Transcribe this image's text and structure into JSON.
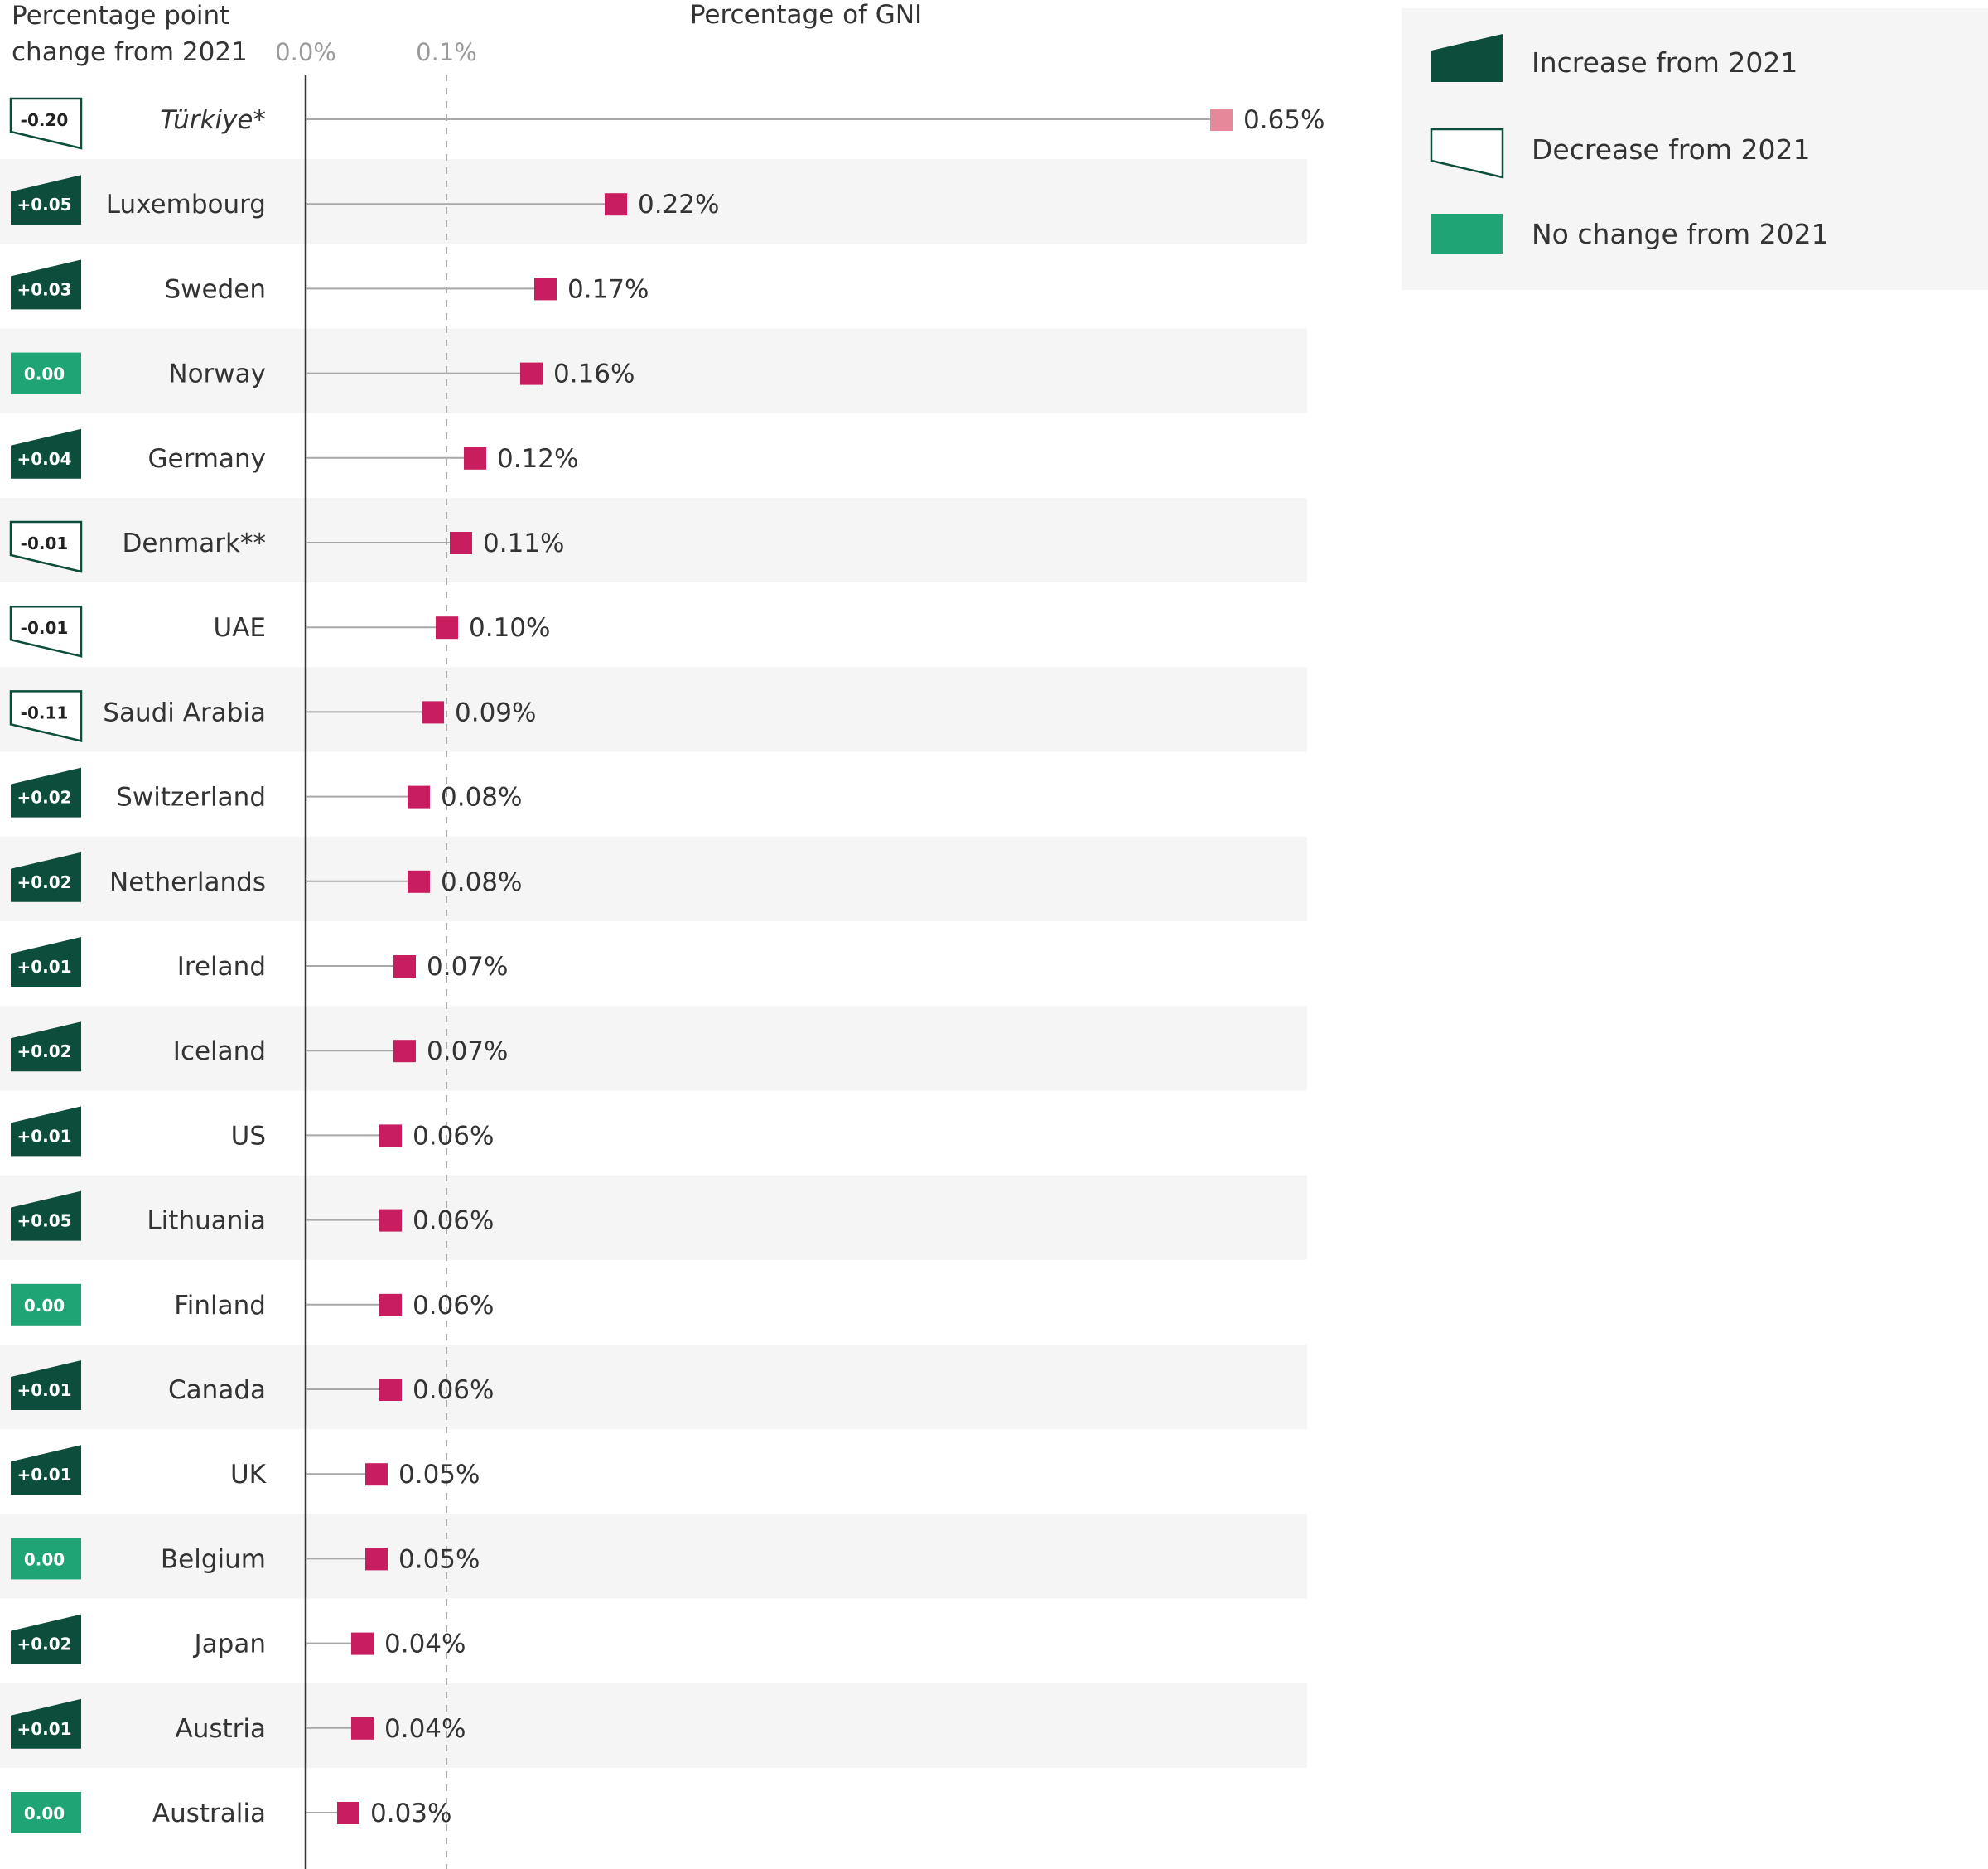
{
  "chart_data": {
    "type": "dot",
    "header_left": [
      "Percentage point",
      "change from 2021"
    ],
    "title": "Percentage of GNI",
    "x_ticks": [
      "0.0%",
      "0.1%"
    ],
    "xlim": [
      0,
      0.65
    ],
    "countries": [
      "Türkiye*",
      "Luxembourg",
      "Sweden",
      "Norway",
      "Germany",
      "Denmark**",
      "UAE",
      "Saudi Arabia",
      "Switzerland",
      "Netherlands",
      "Ireland",
      "Iceland",
      "US",
      "Lithuania",
      "Finland",
      "Canada",
      "UK",
      "Belgium",
      "Japan",
      "Austria",
      "Australia"
    ],
    "values": [
      0.65,
      0.22,
      0.17,
      0.16,
      0.12,
      0.11,
      0.1,
      0.09,
      0.08,
      0.08,
      0.07,
      0.07,
      0.06,
      0.06,
      0.06,
      0.06,
      0.05,
      0.05,
      0.04,
      0.04,
      0.03
    ],
    "value_labels": [
      "0.65%",
      "0.22%",
      "0.17%",
      "0.16%",
      "0.12%",
      "0.11%",
      "0.10%",
      "0.09%",
      "0.08%",
      "0.08%",
      "0.07%",
      "0.07%",
      "0.06%",
      "0.06%",
      "0.06%",
      "0.06%",
      "0.05%",
      "0.05%",
      "0.04%",
      "0.04%",
      "0.03%"
    ],
    "changes": [
      "-0.20",
      "+0.05",
      "+0.03",
      "0.00",
      "+0.04",
      "-0.01",
      "-0.01",
      "-0.11",
      "+0.02",
      "+0.02",
      "+0.01",
      "+0.02",
      "+0.01",
      "+0.05",
      "0.00",
      "+0.01",
      "+0.01",
      "0.00",
      "+0.02",
      "+0.01",
      "0.00"
    ],
    "change_types": [
      "decrease",
      "increase",
      "increase",
      "none",
      "increase",
      "decrease",
      "decrease",
      "decrease",
      "increase",
      "increase",
      "increase",
      "increase",
      "increase",
      "increase",
      "none",
      "increase",
      "increase",
      "none",
      "increase",
      "increase",
      "none"
    ],
    "legend": {
      "placement": "top-right",
      "items": [
        {
          "type": "increase",
          "label": "Increase from 2021"
        },
        {
          "type": "decrease",
          "label": "Decrease from 2021"
        },
        {
          "type": "none",
          "label": "No change from 2021"
        }
      ]
    },
    "colors": {
      "increase": "#0d4d3b",
      "decrease_border": "#0d4d3b",
      "none": "#1fa575",
      "marker": "#c81d5f",
      "marker_highlight": "#e6879a",
      "row_band": "#f5f5f5",
      "legend_bg": "#f5f5f5"
    }
  }
}
